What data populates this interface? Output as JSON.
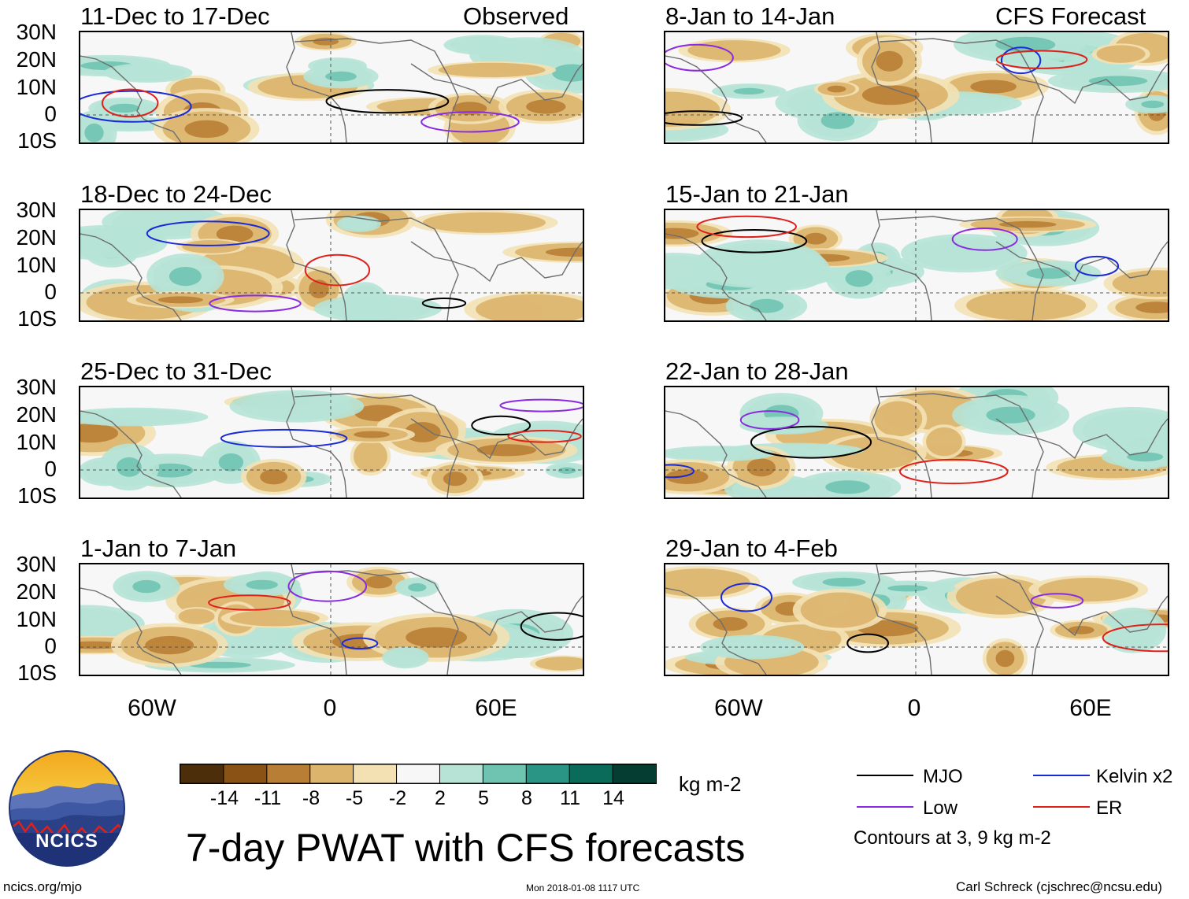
{
  "header": {
    "observed_label": "Observed",
    "forecast_label": "CFS Forecast"
  },
  "lat_labels": [
    "30N",
    "20N",
    "10N",
    "0",
    "10S"
  ],
  "lon_labels": [
    "60W",
    "0",
    "60E"
  ],
  "panels": {
    "observed": [
      {
        "title": "11-Dec to 17-Dec"
      },
      {
        "title": "18-Dec to 24-Dec"
      },
      {
        "title": "25-Dec to 31-Dec"
      },
      {
        "title": "1-Jan to 7-Jan"
      }
    ],
    "forecast": [
      {
        "title": "8-Jan to 14-Jan"
      },
      {
        "title": "15-Jan to 21-Jan"
      },
      {
        "title": "22-Jan to 28-Jan"
      },
      {
        "title": "29-Jan to 4-Feb"
      }
    ]
  },
  "colorbar": {
    "labels": [
      "-14",
      "-11",
      "-8",
      "-5",
      "-2",
      "2",
      "5",
      "8",
      "11",
      "14"
    ],
    "colors": [
      "#4d2e0b",
      "#8a5215",
      "#b97e35",
      "#dcb46b",
      "#f3e1b4",
      "#f7f7f7",
      "#b6e3d6",
      "#6fc3b1",
      "#2a9584",
      "#0b6b5b",
      "#053d33"
    ],
    "units": "kg m-2"
  },
  "legend": {
    "items": [
      {
        "label": "MJO",
        "color": "#000000"
      },
      {
        "label": "Kelvin x2",
        "color": "#1a2ad6"
      },
      {
        "label": "Low",
        "color": "#8a2be2"
      },
      {
        "label": "ER",
        "color": "#e0201b"
      }
    ],
    "contours_note": "Contours at 3, 9 kg m-2"
  },
  "footer": {
    "main_title": "7-day PWAT with CFS forecasts",
    "logo_text": "NCICS",
    "url": "ncics.org/mjo",
    "timestamp": "Mon 2018-01-08 1117 UTC",
    "author": "Carl Schreck (cjschrec@ncsu.edu)"
  }
}
